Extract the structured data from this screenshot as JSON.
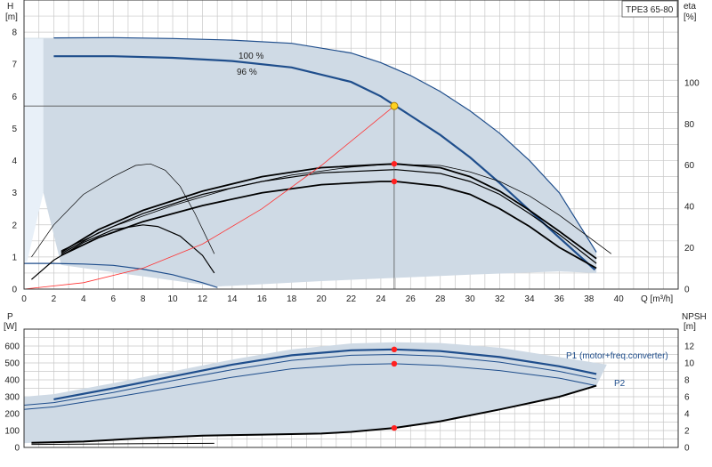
{
  "model_label": "TPE3 65-80",
  "chart_data": [
    {
      "type": "line",
      "panel": "pump-curve",
      "left_axis": {
        "label": "H",
        "unit": "[m]",
        "ylim": [
          0,
          9
        ],
        "ticks": [
          "0",
          "1",
          "2",
          "3",
          "4",
          "5",
          "6",
          "7",
          "8"
        ]
      },
      "right_axis": {
        "label": "eta",
        "unit": "[%]",
        "ylim": [
          0,
          140
        ],
        "ticks": [
          "0",
          "20",
          "40",
          "60",
          "80",
          "100"
        ]
      },
      "x_axis": {
        "label": "Q [m³/h]",
        "xlim": [
          0,
          44
        ],
        "ticks": [
          "0",
          "2",
          "4",
          "6",
          "8",
          "10",
          "12",
          "14",
          "16",
          "18",
          "20",
          "22",
          "24",
          "26",
          "28",
          "30",
          "32",
          "34",
          "36",
          "38",
          "40"
        ]
      },
      "grid": true,
      "duty_point": {
        "x": 24.9,
        "y": 5.7
      },
      "eff_markers": [
        {
          "x": 24.9,
          "y": 3.9
        },
        {
          "x": 24.9,
          "y": 3.35
        }
      ],
      "series": [
        {
          "name": "100 %",
          "color": "#1f4e8c",
          "width": 1.2,
          "x": [
            2,
            6,
            10,
            14,
            18,
            22,
            24,
            26,
            28,
            30,
            32,
            34,
            36,
            38.5
          ],
          "y": [
            7.82,
            7.83,
            7.8,
            7.75,
            7.65,
            7.35,
            7.05,
            6.65,
            6.15,
            5.55,
            4.85,
            4.0,
            3.0,
            1.15
          ]
        },
        {
          "name": "96 %",
          "color": "#1f4e8c",
          "width": 2.2,
          "x": [
            2,
            6,
            10,
            14,
            18,
            22,
            24,
            26,
            28,
            30,
            32,
            34,
            36,
            38.4
          ],
          "y": [
            7.25,
            7.25,
            7.2,
            7.1,
            6.9,
            6.45,
            6.0,
            5.4,
            4.8,
            4.1,
            3.3,
            2.45,
            1.6,
            0.6
          ]
        },
        {
          "name": "",
          "color": "#1f4e8c",
          "width": 1.2,
          "x": [
            0,
            2,
            4,
            6,
            8,
            10,
            12,
            13
          ],
          "y": [
            0.8,
            0.8,
            0.78,
            0.74,
            0.62,
            0.45,
            0.2,
            0.05
          ]
        },
        {
          "name": "",
          "color": "#000000",
          "width": 1.8,
          "x": [
            2.5,
            5,
            8,
            12,
            16,
            20,
            24,
            25,
            28,
            30,
            32,
            34,
            36,
            38.5
          ],
          "y": [
            1.05,
            1.6,
            2.1,
            2.6,
            3.0,
            3.25,
            3.35,
            3.35,
            3.2,
            2.95,
            2.5,
            1.95,
            1.3,
            0.65
          ]
        },
        {
          "name": "",
          "color": "#000000",
          "width": 1.2,
          "x": [
            2.5,
            5,
            8,
            12,
            16,
            20,
            24,
            25,
            28,
            30,
            32,
            34,
            36,
            38.5
          ],
          "y": [
            1.1,
            1.75,
            2.35,
            2.95,
            3.35,
            3.62,
            3.7,
            3.72,
            3.6,
            3.35,
            2.95,
            2.35,
            1.7,
            0.8
          ]
        },
        {
          "name": "",
          "color": "#000000",
          "width": 1.8,
          "x": [
            2.5,
            5,
            8,
            12,
            16,
            20,
            24,
            25,
            28,
            30,
            32,
            34,
            36,
            38.5
          ],
          "y": [
            1.15,
            1.85,
            2.45,
            3.05,
            3.5,
            3.78,
            3.88,
            3.9,
            3.78,
            3.5,
            3.05,
            2.45,
            1.8,
            0.95
          ]
        },
        {
          "name": "",
          "color": "#000000",
          "width": 0.8,
          "x": [
            2.5,
            6,
            10,
            14,
            18,
            22,
            24,
            25,
            28,
            30,
            32,
            34,
            36,
            39.5
          ],
          "y": [
            1.2,
            1.95,
            2.6,
            3.15,
            3.55,
            3.8,
            3.87,
            3.88,
            3.85,
            3.65,
            3.35,
            2.9,
            2.3,
            1.1
          ]
        },
        {
          "name": "",
          "color": "#000000",
          "width": 1.2,
          "x": [
            0.5,
            2,
            4,
            6,
            8,
            9,
            10.5,
            12,
            12.8
          ],
          "y": [
            0.3,
            0.9,
            1.45,
            1.85,
            2.0,
            1.95,
            1.65,
            1.05,
            0.5
          ]
        },
        {
          "name": "",
          "color": "#000000",
          "width": 0.7,
          "x": [
            0.5,
            2,
            4,
            6,
            7.5,
            8.5,
            9.5,
            10.5,
            11.5,
            12.8
          ],
          "y": [
            1.0,
            2.0,
            2.95,
            3.5,
            3.85,
            3.9,
            3.7,
            3.2,
            2.35,
            1.1
          ]
        },
        {
          "name": "",
          "color": "#ff3333",
          "width": 0.8,
          "x": [
            0,
            4,
            8,
            12,
            16,
            20,
            24.9
          ],
          "y": [
            0,
            0.2,
            0.65,
            1.4,
            2.5,
            3.85,
            5.7
          ]
        },
        {
          "name": "",
          "color": "#555555",
          "width": 0.8,
          "x": [
            0,
            24.9,
            24.9
          ],
          "y": [
            5.7,
            5.7,
            0
          ]
        }
      ]
    },
    {
      "type": "line",
      "panel": "power-npsh",
      "left_axis": {
        "label": "P",
        "unit": "[W]",
        "ylim": [
          0,
          700
        ],
        "ticks": [
          "0",
          "100",
          "200",
          "300",
          "400",
          "500",
          "600"
        ]
      },
      "right_axis": {
        "label": "NPSH",
        "unit": "[m]",
        "ylim": [
          0,
          14
        ],
        "ticks": [
          "0",
          "2",
          "4",
          "6",
          "8",
          "10",
          "12"
        ]
      },
      "x_axis": {
        "xlim": [
          0,
          44
        ]
      },
      "grid": true,
      "markers": [
        {
          "x": 24.9,
          "y": 580
        },
        {
          "x": 24.9,
          "y": 495
        },
        {
          "x": 24.9,
          "y": 115
        }
      ],
      "annotations": [
        "P1 (motor+freq.converter)",
        "P2"
      ],
      "series": [
        {
          "name": "",
          "color": "#1f4e8c",
          "width": 2.2,
          "x": [
            2,
            6,
            10,
            14,
            18,
            22,
            24.9,
            28,
            32,
            36,
            38.5
          ],
          "y": [
            285,
            350,
            420,
            490,
            545,
            575,
            580,
            570,
            535,
            480,
            435
          ]
        },
        {
          "name": "",
          "color": "#1f4e8c",
          "width": 1.0,
          "x": [
            0,
            2,
            6,
            10,
            14,
            18,
            22,
            24.9,
            28,
            32,
            36,
            38.5
          ],
          "y": [
            250,
            265,
            325,
            395,
            460,
            515,
            545,
            550,
            540,
            505,
            450,
            405
          ]
        },
        {
          "name": "",
          "color": "#1f4e8c",
          "width": 1.0,
          "x": [
            0,
            2,
            6,
            10,
            14,
            18,
            22,
            24.9,
            28,
            32,
            36,
            38.5
          ],
          "y": [
            225,
            240,
            295,
            355,
            415,
            465,
            490,
            495,
            485,
            455,
            410,
            365
          ]
        },
        {
          "name": "",
          "color": "#000000",
          "width": 2.0,
          "x": [
            0.5,
            4,
            8,
            12,
            16,
            20,
            22,
            24.9,
            28,
            32,
            36,
            38.5
          ],
          "y": [
            28,
            35,
            55,
            70,
            76,
            82,
            92,
            115,
            155,
            225,
            300,
            365
          ]
        },
        {
          "name": "",
          "color": "#000000",
          "width": 1.0,
          "x": [
            0.5,
            4,
            8,
            12.8
          ],
          "y": [
            18,
            20,
            22,
            24
          ]
        }
      ]
    }
  ]
}
